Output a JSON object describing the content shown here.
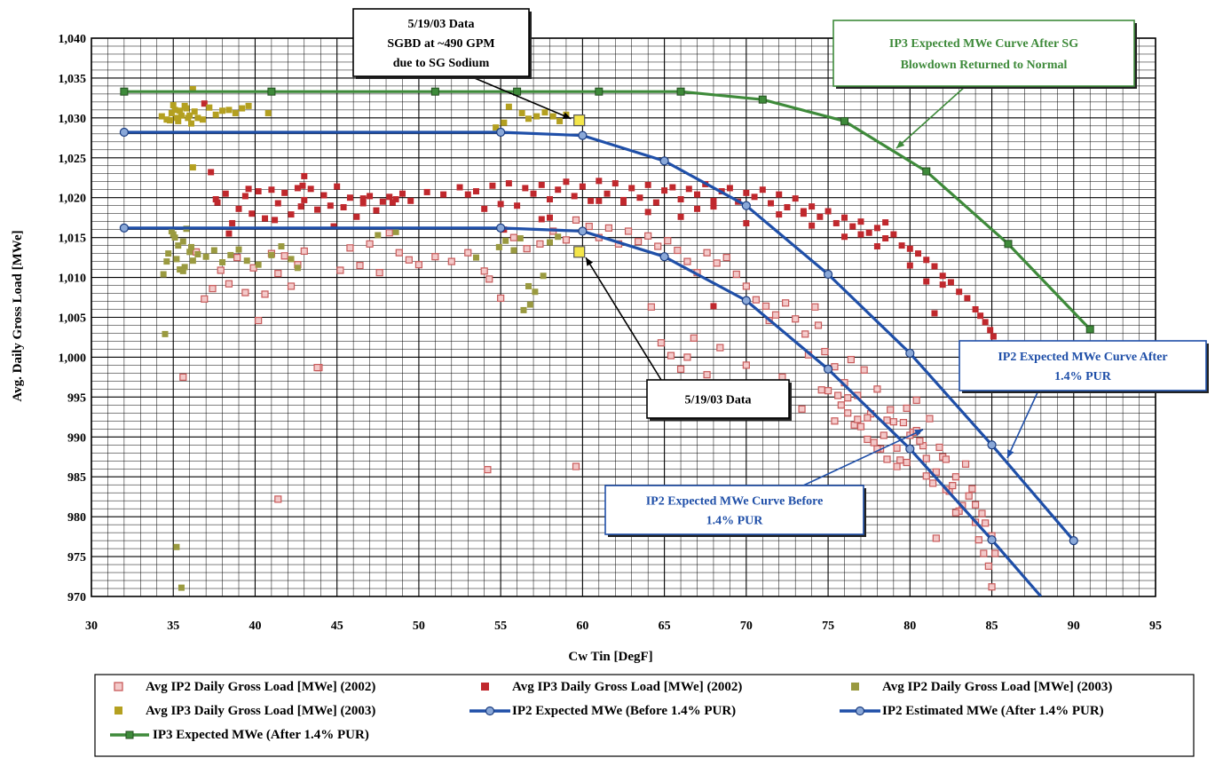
{
  "chart_data": {
    "type": "scatter",
    "xlabel": "Cw Tin [DegF]",
    "ylabel": "Avg. Daily Gross Load [MWe]",
    "xlim": [
      30,
      95
    ],
    "ylim": [
      970,
      1040
    ],
    "x_ticks": [
      "30",
      "35",
      "40",
      "45",
      "50",
      "55",
      "60",
      "65",
      "70",
      "75",
      "80",
      "85",
      "90",
      "95"
    ],
    "y_ticks": [
      "970",
      "975",
      "980",
      "985",
      "990",
      "995",
      "1,000",
      "1,005",
      "1,010",
      "1,015",
      "1,020",
      "1,025",
      "1,030",
      "1,035",
      "1,040"
    ],
    "grid": true,
    "legend_position": "bottom",
    "colors": {
      "ip2_2002": "#c85a5a",
      "ip3_2002": "#c0282d",
      "ip2_2003": "#9a9a40",
      "ip3_2003": "#b4a020",
      "ip2_before": "#1f4fa8",
      "ip2_after": "#1f4fa8",
      "ip3_curve": "#3e8a3a",
      "highlight": "#f4e64a"
    },
    "legend": [
      {
        "key": "ip2_2002",
        "label": "Avg IP2 Daily Gross Load [MWe] (2002)",
        "marker": "hollow-square"
      },
      {
        "key": "ip3_2002",
        "label": "Avg IP3 Daily Gross Load [MWe] (2002)",
        "marker": "square"
      },
      {
        "key": "ip2_2003",
        "label": "Avg IP2 Daily Gross Load [MWe] (2003)",
        "marker": "square"
      },
      {
        "key": "ip3_2003",
        "label": "Avg IP3 Daily Gross Load [MWe] (2003)",
        "marker": "square"
      },
      {
        "key": "ip2_before",
        "label": "IP2 Expected MWe (Before 1.4% PUR)",
        "marker": "line-circle"
      },
      {
        "key": "ip2_after",
        "label": "IP2 Estimated MWe (After 1.4% PUR)",
        "marker": "line-circle"
      },
      {
        "key": "ip3_curve",
        "label": "IP3 Expected MWe (After 1.4% PUR)",
        "marker": "line-square"
      }
    ],
    "series": [
      {
        "name": "IP3 Expected MWe (After 1.4% PUR)",
        "key": "ip3_curve",
        "kind": "line",
        "x": [
          32,
          41,
          51,
          56,
          61,
          66,
          71,
          76,
          81,
          86,
          91
        ],
        "y": [
          1033.3,
          1033.3,
          1033.3,
          1033.3,
          1033.3,
          1033.3,
          1032.3,
          1029.6,
          1023.3,
          1014.2,
          1003.5
        ]
      },
      {
        "name": "IP2 Estimated MWe (After 1.4% PUR)",
        "key": "ip2_after",
        "kind": "line",
        "x": [
          32,
          55,
          60,
          65,
          70,
          75,
          80,
          85,
          90
        ],
        "y": [
          1028.2,
          1028.2,
          1027.8,
          1024.6,
          1019.0,
          1010.4,
          1000.5,
          989.0,
          977.0
        ]
      },
      {
        "name": "IP2 Expected MWe (Before 1.4% PUR)",
        "key": "ip2_before",
        "kind": "line",
        "x": [
          32,
          55,
          60,
          65,
          70,
          75,
          80,
          85,
          88
        ],
        "y": [
          1016.2,
          1016.2,
          1015.8,
          1012.6,
          1007.1,
          998.5,
          988.5,
          977.1,
          970
        ]
      },
      {
        "name": "Avg IP3 Daily Gross Load [MWe] (2003)",
        "key": "ip3_2003",
        "kind": "scatter",
        "x": [
          34.3,
          34.6,
          34.9,
          35.1,
          35.3,
          35.5,
          35.7,
          35.9,
          36.1,
          36.3,
          36.5,
          36.8,
          37.2,
          37.6,
          38.0,
          38.4,
          38.8,
          39.2,
          39.6,
          35.0,
          35.4,
          35.8,
          34.8,
          36.0,
          35.2,
          36.2,
          36.2,
          40.8,
          54.7,
          55.2,
          55.5,
          56.3,
          56.7,
          57.2,
          57.7,
          58.2,
          58.6,
          59.0
        ],
        "y": [
          1030.2,
          1029.8,
          1030.6,
          1031.0,
          1029.6,
          1030.3,
          1031.5,
          1030.0,
          1029.3,
          1030.8,
          1030.0,
          1029.8,
          1031.3,
          1030.4,
          1030.9,
          1031.0,
          1030.6,
          1031.2,
          1031.5,
          1031.6,
          1030.9,
          1031.2,
          1029.7,
          1030.3,
          1030.0,
          1033.6,
          1023.8,
          1030.6,
          1028.8,
          1029.4,
          1031.4,
          1030.6,
          1029.9,
          1030.2,
          1030.7,
          1030.2,
          1029.6,
          1030.4
        ]
      },
      {
        "name": "Avg IP2 Daily Gross Load [MWe] (2003)",
        "key": "ip2_2003",
        "kind": "scatter",
        "x": [
          34.4,
          34.7,
          35.0,
          35.2,
          35.4,
          35.6,
          35.8,
          36.0,
          36.2,
          34.9,
          35.3,
          35.7,
          36.1,
          36.5,
          37.0,
          37.5,
          38.0,
          38.5,
          39.0,
          39.5,
          40.2,
          41.0,
          41.6,
          42.2,
          42.6,
          34.6,
          35.1,
          35.6,
          47.5,
          48.6,
          53.5,
          54.9,
          55.3,
          55.8,
          56.2,
          56.7,
          57.1,
          57.6,
          58.0,
          58.5,
          34.5,
          56.4,
          56.8,
          35.2,
          35.5
        ],
        "y": [
          1010.4,
          1013.0,
          1015.4,
          1012.3,
          1011.0,
          1014.5,
          1016.1,
          1013.2,
          1012.1,
          1015.8,
          1014.0,
          1011.3,
          1013.8,
          1012.9,
          1012.6,
          1013.4,
          1011.9,
          1012.8,
          1013.5,
          1012.1,
          1011.6,
          1012.8,
          1013.9,
          1012.3,
          1011.2,
          1012.0,
          1015.0,
          1010.8,
          1015.3,
          1015.7,
          1012.5,
          1013.8,
          1014.6,
          1013.4,
          1014.9,
          1008.9,
          1008.2,
          1010.2,
          1014.4,
          1015.1,
          1002.9,
          1005.9,
          1006.6,
          976.2,
          971.1
        ]
      },
      {
        "name": "Avg IP3 Daily Gross Load [MWe] (2002)",
        "key": "ip3_2002",
        "kind": "scatter",
        "x": [
          36.9,
          37.3,
          37.7,
          38.2,
          38.6,
          39.0,
          39.4,
          39.8,
          40.2,
          40.6,
          41.0,
          41.4,
          41.8,
          42.2,
          42.6,
          43.0,
          43.4,
          43.8,
          44.2,
          44.6,
          45.0,
          45.4,
          45.8,
          46.2,
          46.6,
          47.0,
          47.4,
          47.8,
          48.2,
          48.6,
          49.0,
          49.5,
          50.5,
          51.5,
          52.5,
          53.5,
          54.0,
          54.5,
          55.0,
          55.5,
          56.0,
          56.5,
          57.0,
          57.5,
          58.0,
          58.5,
          59.0,
          59.5,
          60.0,
          60.5,
          61.0,
          61.5,
          62.0,
          62.5,
          63.0,
          63.5,
          64.0,
          64.5,
          65.0,
          65.5,
          66.0,
          66.5,
          67.0,
          67.5,
          68.0,
          68.5,
          69.0,
          69.5,
          70.0,
          70.5,
          71.0,
          71.5,
          72.0,
          72.5,
          73.0,
          73.5,
          74.0,
          74.5,
          75.0,
          75.5,
          76.0,
          76.5,
          77.0,
          77.5,
          78.0,
          78.5,
          79.0,
          79.5,
          80.0,
          80.5,
          81.0,
          81.5,
          82.0,
          82.5,
          83.0,
          83.5,
          84.0,
          84.3,
          84.6,
          84.9,
          85.1,
          39.6,
          41.2,
          43.0,
          44.8,
          46.6,
          55.2,
          58.0,
          61.0,
          64.0,
          66.0,
          68.0,
          70.0,
          72.0,
          74.0,
          76.0,
          78.0,
          80.0,
          82.0,
          37.6,
          38.4,
          42.8,
          48.4,
          53.0,
          57.5,
          62.5,
          67.0,
          73.5,
          77.0,
          81.0,
          81.5,
          78.5,
          68.0,
          42.9
        ],
        "y": [
          1031.8,
          1023.2,
          1019.4,
          1020.5,
          1016.8,
          1018.6,
          1020.2,
          1018.0,
          1020.8,
          1017.4,
          1021.0,
          1019.3,
          1020.6,
          1017.9,
          1021.2,
          1019.7,
          1021.1,
          1018.5,
          1020.3,
          1019.0,
          1021.4,
          1018.8,
          1020.0,
          1017.6,
          1019.9,
          1020.2,
          1018.4,
          1019.5,
          1020.1,
          1019.8,
          1020.5,
          1019.6,
          1020.7,
          1020.4,
          1021.3,
          1020.8,
          1018.6,
          1021.5,
          1019.2,
          1021.8,
          1019.0,
          1021.2,
          1020.5,
          1021.6,
          1019.8,
          1021.0,
          1022.0,
          1020.2,
          1021.4,
          1019.6,
          1022.1,
          1020.5,
          1021.8,
          1019.7,
          1021.2,
          1020.0,
          1021.6,
          1019.4,
          1020.9,
          1021.3,
          1019.8,
          1021.1,
          1020.4,
          1021.7,
          1019.6,
          1020.8,
          1021.2,
          1019.5,
          1020.6,
          1020.1,
          1021.0,
          1019.3,
          1020.4,
          1018.8,
          1019.9,
          1018.0,
          1018.9,
          1017.6,
          1018.3,
          1016.8,
          1017.5,
          1016.4,
          1017.0,
          1015.6,
          1016.2,
          1014.9,
          1015.4,
          1014.0,
          1013.6,
          1013.0,
          1012.2,
          1011.4,
          1010.2,
          1009.4,
          1008.2,
          1007.4,
          1006.0,
          1005.2,
          1004.4,
          1003.4,
          1002.6,
          1021.1,
          1017.2,
          1022.7,
          1016.4,
          1019.3,
          1016.0,
          1017.5,
          1019.6,
          1018.2,
          1017.6,
          1018.9,
          1016.8,
          1017.9,
          1016.5,
          1015.1,
          1013.9,
          1011.5,
          1009.1,
          1019.8,
          1015.5,
          1018.9,
          1019.4,
          1020.4,
          1017.3,
          1019.4,
          1018.6,
          1018.3,
          1015.4,
          1009.5,
          1005.5,
          1016.9,
          1006.4,
          1021.5
        ]
      },
      {
        "name": "Avg IP2 Daily Gross Load [MWe] (2002)",
        "key": "ip2_2002",
        "kind": "scatter",
        "x": [
          35.6,
          36.4,
          36.9,
          37.4,
          37.9,
          38.4,
          38.9,
          39.4,
          39.9,
          40.2,
          40.6,
          41.0,
          41.4,
          41.8,
          42.2,
          42.6,
          43.0,
          43.9,
          45.2,
          45.8,
          46.4,
          47.0,
          47.6,
          48.2,
          48.8,
          49.4,
          50.0,
          51.0,
          52.0,
          53.0,
          54.0,
          54.3,
          55.0,
          55.8,
          56.6,
          57.4,
          58.2,
          59.0,
          59.6,
          60.4,
          61.0,
          61.6,
          62.2,
          62.8,
          63.4,
          64.0,
          64.6,
          65.2,
          65.8,
          66.4,
          67.0,
          67.6,
          68.2,
          68.8,
          69.4,
          70.0,
          70.6,
          71.2,
          71.8,
          72.4,
          73.0,
          73.6,
          74.2,
          74.8,
          75.4,
          76.0,
          76.4,
          76.8,
          77.2,
          77.6,
          78.0,
          78.4,
          78.8,
          79.2,
          79.6,
          80.0,
          80.4,
          80.8,
          81.2,
          81.6,
          82.0,
          82.4,
          82.8,
          83.2,
          83.6,
          84.0,
          84.2,
          84.5,
          84.8,
          85.0,
          85.2,
          41.4,
          43.8,
          64.8,
          65.4,
          66.0,
          66.8,
          67.6,
          68.4,
          69.2,
          70.0,
          71.0,
          72.2,
          73.4,
          74.6,
          75.4,
          76.2,
          77.0,
          77.8,
          78.6,
          79.4,
          80.2,
          81.0,
          81.8,
          82.6,
          83.4,
          84.0,
          84.6,
          85.0,
          75.8,
          76.6,
          77.4,
          78.2,
          79.0,
          79.8,
          80.6,
          81.4,
          82.2,
          83.0,
          83.8,
          84.4,
          54.2,
          59.6,
          64.2,
          66.4,
          68.6,
          71.4,
          73.8,
          74.4,
          75.0,
          75.6,
          76.2,
          76.8,
          77.4,
          78.0,
          78.6,
          79.2,
          79.8,
          80.4,
          81.0,
          81.6,
          82.2,
          82.8
        ],
        "y": [
          997.5,
          1013.2,
          1007.3,
          1008.6,
          1010.9,
          1009.2,
          1012.5,
          1008.1,
          1011.2,
          1004.6,
          1007.9,
          1013.0,
          1010.5,
          1012.7,
          1008.9,
          1011.6,
          1013.3,
          998.7,
          1010.9,
          1013.7,
          1011.5,
          1014.2,
          1010.6,
          1015.6,
          1013.1,
          1012.2,
          1011.6,
          1012.6,
          1012.0,
          1013.1,
          1010.8,
          1009.8,
          1007.4,
          1015.0,
          1013.6,
          1014.2,
          1015.8,
          1014.7,
          1017.2,
          1016.4,
          1015.0,
          1016.2,
          1014.2,
          1015.8,
          1014.5,
          1015.2,
          1013.9,
          1014.6,
          1013.4,
          1012.0,
          1010.6,
          1013.1,
          1011.8,
          1012.5,
          1010.4,
          1008.9,
          1007.2,
          1006.4,
          1005.3,
          1006.8,
          1004.8,
          1002.9,
          1006.3,
          1000.7,
          998.8,
          996.8,
          999.7,
          995.2,
          998.4,
          992.9,
          996.0,
          990.2,
          993.4,
          988.6,
          991.8,
          990.2,
          994.6,
          988.9,
          992.3,
          985.6,
          987.5,
          983.2,
          985.0,
          981.4,
          982.6,
          979.3,
          977.1,
          975.4,
          973.8,
          971.2,
          975.4,
          982.2,
          998.7,
          1001.8,
          1000.2,
          998.5,
          1002.4,
          997.8,
          1001.2,
          995.9,
          999.0,
          994.2,
          997.5,
          993.5,
          995.9,
          992.0,
          994.9,
          991.3,
          989.3,
          992.1,
          987.1,
          990.6,
          985.1,
          988.7,
          983.9,
          986.6,
          981.5,
          979.2,
          977.6,
          994.0,
          991.5,
          992.4,
          988.5,
          991.9,
          986.8,
          989.5,
          984.2,
          987.2,
          980.7,
          983.5,
          980.4,
          985.9,
          986.3,
          1006.3,
          1000.0,
          992.6,
          1004.6,
          1000.3,
          1004.0,
          995.8,
          995.2,
          993.0,
          992.2,
          989.7,
          988.5,
          987.2,
          986.3,
          993.6,
          990.8,
          987.3,
          977.3,
          983.4,
          980.5
        ]
      }
    ],
    "highlights": [
      {
        "x": 59.8,
        "y": 1029.7
      },
      {
        "x": 59.8,
        "y": 1013.2
      }
    ],
    "annotations": [
      {
        "lines": [
          "5/19/03 Data",
          "SGBD at ~490 GPM",
          "due to SG Sodium"
        ],
        "color": "#000000"
      },
      {
        "lines": [
          "5/19/03 Data"
        ],
        "color": "#000000"
      },
      {
        "lines": [
          "IP3 Expected MWe Curve After SG",
          "Blowdown Returned to Normal"
        ],
        "color": "#3e8a3a"
      },
      {
        "lines": [
          "IP2 Expected MWe Curve After",
          "1.4% PUR"
        ],
        "color": "#1f4fa8"
      },
      {
        "lines": [
          "IP2 Expected MWe Curve Before",
          "1.4% PUR"
        ],
        "color": "#1f4fa8"
      }
    ]
  }
}
